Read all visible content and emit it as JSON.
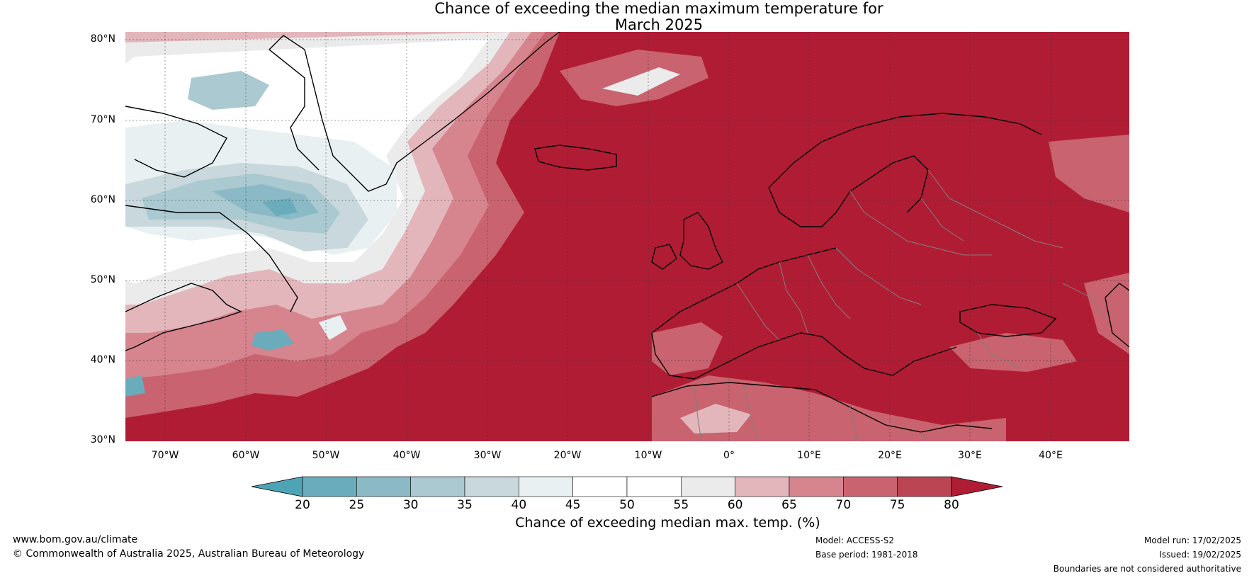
{
  "title": {
    "line1": "Chance of exceeding the median maximum temperature for",
    "line2": "March 2025"
  },
  "map": {
    "lat_labels": [
      "80°N",
      "70°N",
      "60°N",
      "50°N",
      "40°N",
      "30°N"
    ],
    "lon_labels": [
      "70°W",
      "60°W",
      "50°W",
      "40°W",
      "30°W",
      "20°W",
      "10°W",
      "0°",
      "10°E",
      "20°E",
      "30°E",
      "40°E"
    ],
    "colors": {
      "deep_red": "#b11c35",
      "land_outline": "#000000",
      "border": "#808080",
      "ocean_neutral": "#ffffff"
    }
  },
  "colorbar": {
    "ticks": [
      "20",
      "25",
      "30",
      "35",
      "40",
      "45",
      "50",
      "55",
      "60",
      "65",
      "70",
      "75",
      "80"
    ],
    "colors": [
      "#4ea4b4",
      "#6aacbb",
      "#8bbac6",
      "#aac9d0",
      "#c9d8dc",
      "#e9f0f1",
      "#ffffff",
      "#ffffff",
      "#ecebec",
      "#e2b6bb",
      "#d6848e",
      "#c8636f",
      "#bc4553",
      "#b11c35"
    ],
    "label": "Chance of exceeding median max. temp. (%)"
  },
  "footer": {
    "website": "www.bom.gov.au/climate",
    "copyright": "© Commonwealth of Australia 2025, Australian Bureau of Meteorology",
    "model": "Model: ACCESS-S2",
    "base_period": "Base period: 1981-2018",
    "model_run": "Model run: 17/02/2025",
    "issued": "Issued: 19/02/2025",
    "disclaimer": "Boundaries are not considered authoritative"
  }
}
